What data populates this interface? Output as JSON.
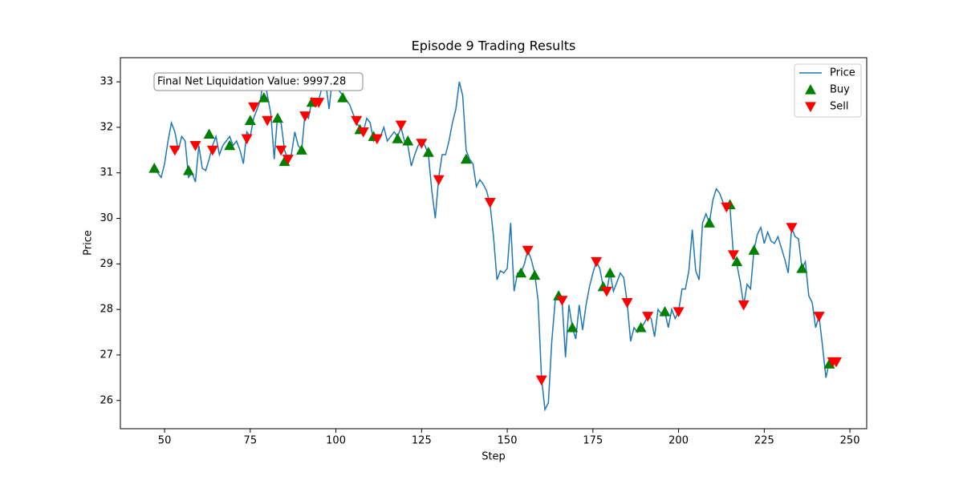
{
  "chart_data": {
    "type": "line",
    "title": "Episode 9 Trading Results",
    "x_label": "Step",
    "y_label": "Price",
    "annotation": "Final Net Liquidation Value: 9997.28",
    "xlim": [
      37.1,
      254.9
    ],
    "ylim": [
      25.38,
      33.53
    ],
    "xticks": [
      50,
      75,
      100,
      125,
      150,
      175,
      200,
      225,
      250
    ],
    "yticks": [
      26,
      27,
      28,
      29,
      30,
      31,
      32,
      33
    ],
    "legend": "upper right",
    "series": [
      {
        "name": "Price",
        "kind": "line",
        "color": "#1f77b4",
        "x": [
          47,
          48,
          49,
          50,
          51,
          52,
          53,
          54,
          55,
          56,
          57,
          58,
          59,
          60,
          61,
          62,
          63,
          64,
          65,
          66,
          67,
          68,
          69,
          70,
          71,
          72,
          73,
          74,
          75,
          76,
          77,
          78,
          79,
          80,
          81,
          82,
          83,
          84,
          85,
          86,
          87,
          88,
          89,
          90,
          91,
          92,
          93,
          94,
          95,
          96,
          97,
          98,
          99,
          100,
          101,
          102,
          103,
          104,
          105,
          106,
          107,
          108,
          109,
          110,
          111,
          112,
          113,
          114,
          115,
          116,
          117,
          118,
          119,
          120,
          121,
          122,
          123,
          124,
          125,
          126,
          127,
          128,
          129,
          130,
          131,
          132,
          133,
          134,
          135,
          136,
          137,
          138,
          139,
          140,
          141,
          142,
          143,
          144,
          145,
          146,
          147,
          148,
          149,
          150,
          151,
          152,
          153,
          154,
          155,
          156,
          157,
          158,
          159,
          160,
          161,
          162,
          163,
          164,
          165,
          166,
          167,
          168,
          169,
          170,
          171,
          172,
          173,
          174,
          175,
          176,
          177,
          178,
          179,
          180,
          181,
          182,
          183,
          184,
          185,
          186,
          187,
          188,
          189,
          190,
          191,
          192,
          193,
          194,
          195,
          196,
          197,
          198,
          199,
          200,
          201,
          202,
          203,
          204,
          205,
          206,
          207,
          208,
          209,
          210,
          211,
          212,
          213,
          214,
          215,
          216,
          217,
          218,
          219,
          220,
          221,
          222,
          223,
          224,
          225,
          226,
          227,
          228,
          229,
          230,
          231,
          232,
          233,
          234,
          235,
          236,
          237,
          238,
          239,
          240,
          241,
          242,
          243,
          244,
          245
        ],
        "values": [
          31.1,
          31.0,
          30.9,
          31.2,
          31.7,
          32.1,
          31.9,
          31.5,
          31.8,
          31.7,
          30.9,
          31.0,
          30.8,
          31.6,
          31.1,
          31.05,
          31.3,
          31.6,
          31.8,
          31.4,
          31.6,
          31.7,
          31.8,
          31.6,
          31.7,
          31.5,
          31.2,
          31.9,
          31.8,
          32.2,
          32.4,
          32.6,
          33.2,
          32.7,
          32.3,
          31.3,
          32.3,
          32.1,
          31.5,
          31.3,
          31.4,
          31.9,
          31.6,
          31.5,
          32.3,
          32.2,
          32.6,
          32.5,
          32.6,
          32.9,
          33.0,
          32.4,
          33.1,
          32.9,
          32.8,
          32.7,
          32.6,
          32.5,
          32.3,
          32.1,
          32.0,
          31.9,
          32.2,
          32.1,
          31.7,
          31.8,
          31.8,
          32.0,
          31.7,
          31.8,
          31.9,
          31.8,
          32.0,
          31.7,
          31.6,
          31.15,
          31.4,
          31.6,
          31.7,
          31.6,
          31.4,
          30.6,
          30.0,
          30.9,
          31.4,
          31.4,
          31.7,
          32.1,
          32.4,
          33.0,
          32.7,
          31.5,
          31.3,
          31.2,
          30.7,
          30.85,
          30.75,
          30.6,
          30.3,
          29.6,
          28.65,
          28.85,
          28.8,
          28.9,
          29.9,
          28.4,
          28.8,
          28.8,
          29.0,
          29.3,
          29.1,
          28.8,
          28.2,
          26.5,
          25.8,
          25.95,
          27.3,
          28.2,
          28.3,
          28.2,
          26.95,
          28.1,
          27.6,
          27.35,
          28.1,
          27.55,
          28.1,
          28.5,
          28.8,
          29.05,
          28.9,
          28.5,
          28.4,
          28.8,
          28.4,
          28.6,
          28.8,
          28.7,
          28.15,
          27.3,
          27.6,
          27.5,
          27.6,
          27.7,
          27.85,
          27.8,
          27.4,
          28.0,
          27.9,
          27.95,
          27.6,
          28.0,
          27.8,
          27.95,
          28.45,
          28.45,
          28.85,
          29.75,
          28.85,
          28.65,
          29.9,
          30.1,
          29.9,
          30.4,
          30.65,
          30.55,
          30.35,
          30.2,
          30.25,
          29.2,
          29.0,
          28.6,
          28.1,
          28.55,
          28.45,
          29.3,
          29.65,
          29.8,
          29.45,
          29.7,
          29.5,
          29.45,
          29.6,
          29.35,
          29.1,
          28.8,
          29.8,
          29.6,
          29.55,
          28.9,
          29.05,
          28.3,
          28.15,
          27.6,
          27.85,
          27.2,
          26.5,
          26.85,
          26.85
        ]
      },
      {
        "name": "Buy",
        "kind": "up",
        "color": "#008000",
        "x": [
          47,
          57,
          63,
          69,
          75,
          79,
          83,
          85,
          90,
          93,
          102,
          107,
          111,
          118,
          121,
          127,
          138,
          154,
          158,
          165,
          169,
          178,
          180,
          189,
          196,
          209,
          215,
          217,
          222,
          236,
          244
        ],
        "values": [
          31.1,
          31.05,
          31.85,
          31.6,
          32.15,
          32.65,
          32.2,
          31.25,
          31.5,
          32.55,
          32.65,
          31.95,
          31.8,
          31.75,
          31.7,
          31.45,
          31.3,
          28.8,
          28.75,
          28.3,
          27.6,
          28.5,
          28.8,
          27.6,
          27.95,
          29.9,
          30.3,
          29.05,
          29.3,
          28.9,
          26.8
        ]
      },
      {
        "name": "Sell",
        "kind": "down",
        "color": "#ff0000",
        "x": [
          53,
          59,
          64,
          74,
          76,
          80,
          84,
          86,
          91,
          94,
          95,
          106,
          108,
          112,
          119,
          125,
          130,
          145,
          156,
          160,
          166,
          176,
          179,
          185,
          191,
          200,
          214,
          216,
          219,
          233,
          241,
          245,
          246
        ],
        "values": [
          31.5,
          31.6,
          31.5,
          31.75,
          32.45,
          32.15,
          31.5,
          31.3,
          32.25,
          32.55,
          32.55,
          32.15,
          31.9,
          31.75,
          32.05,
          31.65,
          30.85,
          30.35,
          29.3,
          26.45,
          28.2,
          29.05,
          28.4,
          28.15,
          27.85,
          27.95,
          30.25,
          29.2,
          28.1,
          29.8,
          27.85,
          26.85,
          26.85
        ]
      }
    ]
  }
}
